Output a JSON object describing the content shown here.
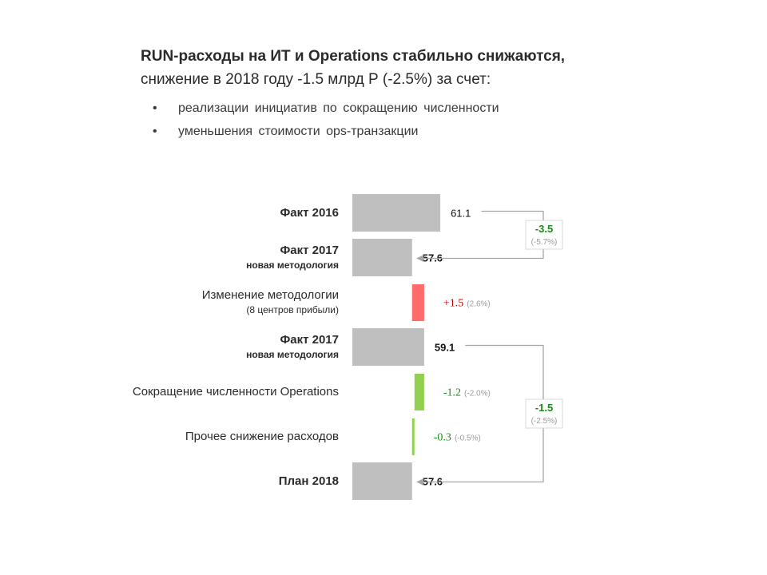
{
  "header": {
    "title_line1": "RUN-расходы на ИТ и Operations стабильно снижаются,",
    "title_line2": "снижение в 2018 году -1.5 млрд Р (-2.5%) за счет:",
    "bullets": [
      "реализации инициатив по сокращению численности",
      "уменьшения стоимости ops-транзакции"
    ],
    "bullet_glyph": "•"
  },
  "chart_data": {
    "type": "bar",
    "orientation": "horizontal-waterfall",
    "rows": [
      {
        "label": "Факт 2016",
        "sublabel": "",
        "label_bold": true,
        "kind": "total",
        "value": 61.1,
        "value_label": "61.1",
        "value_bold": false
      },
      {
        "label": "Факт 2017",
        "sublabel": "новая методология",
        "label_bold": true,
        "kind": "total",
        "value": 57.6,
        "value_label": "57.6",
        "value_bold": true
      },
      {
        "label": "Изменение методологии",
        "sublabel": "(8 центров прибыли)",
        "label_bold": false,
        "kind": "delta",
        "start": 57.6,
        "value": 1.5,
        "delta_label": "+1.5",
        "pct_label": "(2.6%)"
      },
      {
        "label": "Факт 2017",
        "sublabel": "новая методология",
        "label_bold": true,
        "kind": "total",
        "value": 59.1,
        "value_label": "59.1",
        "value_bold": true
      },
      {
        "label": "Сокращение численности Operations",
        "sublabel": "",
        "label_bold": false,
        "kind": "delta",
        "start": 59.1,
        "value": -1.2,
        "delta_label": "-1.2",
        "pct_label": "(-2.0%)"
      },
      {
        "label": "Прочее снижение расходов",
        "sublabel": "",
        "label_bold": false,
        "kind": "delta",
        "start": 57.9,
        "value": -0.3,
        "delta_label": "-0.3",
        "pct_label": "(-0.5%)"
      },
      {
        "label": "План 2018",
        "sublabel": "",
        "label_bold": true,
        "kind": "total",
        "value": 57.6,
        "value_label": "57.6",
        "value_bold": true
      }
    ],
    "brackets": [
      {
        "from_row": 0,
        "to_row": 1,
        "delta_label": "-3.5",
        "pct_label": "(-5.7%)"
      },
      {
        "from_row": 3,
        "to_row": 6,
        "delta_label": "-1.5",
        "pct_label": "(-2.5%)"
      }
    ],
    "colors": {
      "total": "#bfbfbf",
      "increase": "#ff6b6b",
      "decrease": "#92d050",
      "increase_text": "#c00000",
      "decrease_text": "#1a8a1a",
      "connector": "#a6a6a6"
    }
  }
}
